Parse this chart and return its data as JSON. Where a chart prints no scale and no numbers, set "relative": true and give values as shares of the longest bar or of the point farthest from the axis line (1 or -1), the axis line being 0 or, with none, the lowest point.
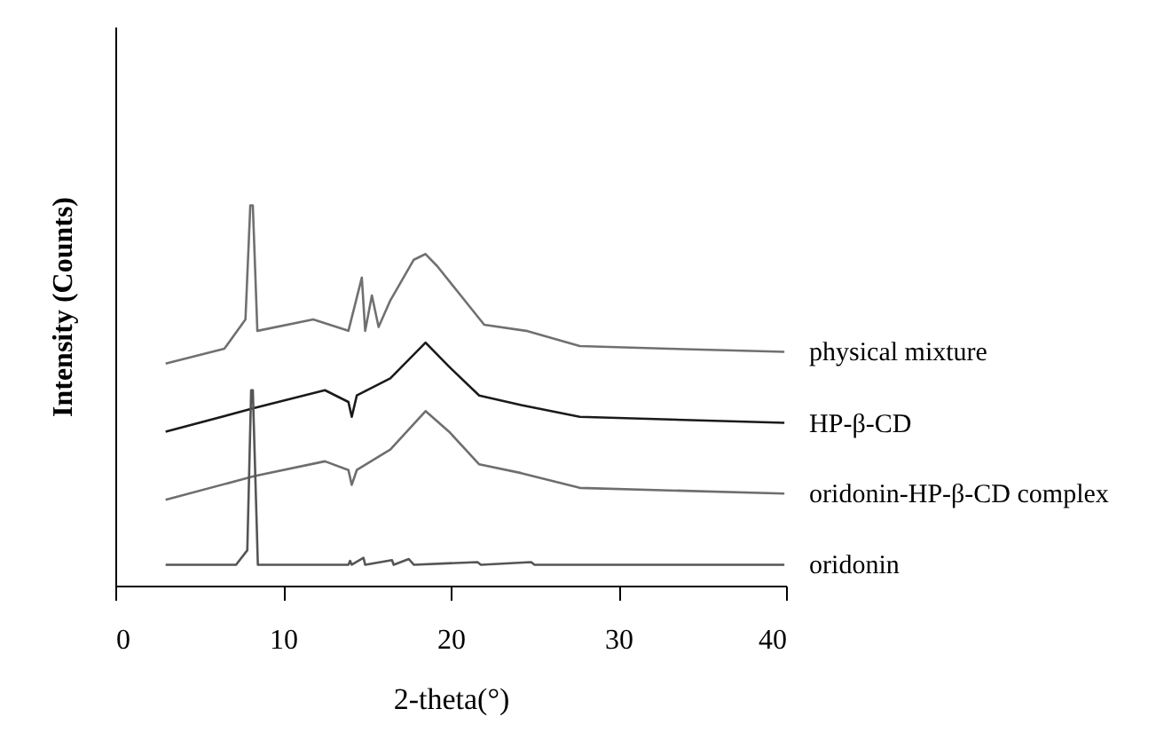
{
  "chart_data": {
    "type": "line",
    "xlabel": "2-theta(°)",
    "ylabel": "Intensity (Counts)",
    "xlim": [
      0,
      40
    ],
    "xticks": [
      0,
      10,
      20,
      30,
      40
    ],
    "relative": true,
    "tick_labels": "x",
    "series": [
      {
        "name": "physical mixture",
        "color": "#707070",
        "x": [
          3.0,
          6.5,
          7.76,
          8.05,
          8.2,
          8.47,
          11.8,
          13.9,
          14.7,
          14.9,
          15.3,
          15.7,
          16.4,
          17.8,
          18.5,
          19.2,
          20.6,
          22.0,
          24.5,
          27.7,
          33.0,
          39.9
        ],
        "values": [
          0.584,
          0.623,
          0.7,
          1.0,
          1.0,
          0.67,
          0.7,
          0.67,
          0.81,
          0.67,
          0.763,
          0.68,
          0.75,
          0.857,
          0.872,
          0.84,
          0.763,
          0.686,
          0.67,
          0.63,
          0.623,
          0.615
        ]
      },
      {
        "name": "HP-β-CD",
        "color": "#1a1a1a",
        "x": [
          3.0,
          8.3,
          12.5,
          13.9,
          14.1,
          14.4,
          16.4,
          18.5,
          19.9,
          21.7,
          24.2,
          27.7,
          39.9
        ],
        "values": [
          0.405,
          0.467,
          0.514,
          0.483,
          0.444,
          0.5,
          0.545,
          0.639,
          0.576,
          0.5,
          0.475,
          0.444,
          0.428
        ]
      },
      {
        "name": "oridonin-HP-β-CD complex",
        "color": "#6e6e6e",
        "x": [
          3.0,
          8.3,
          12.5,
          13.9,
          14.1,
          14.4,
          16.4,
          18.5,
          19.9,
          21.7,
          24.2,
          27.7,
          39.9
        ],
        "values": [
          0.226,
          0.288,
          0.327,
          0.304,
          0.265,
          0.304,
          0.358,
          0.459,
          0.405,
          0.319,
          0.296,
          0.257,
          0.242
        ]
      },
      {
        "name": "oridonin",
        "color": "#555555",
        "x": [
          3.0,
          7.2,
          7.87,
          8.1,
          8.2,
          8.5,
          13.9,
          14.0,
          14.1,
          14.8,
          14.9,
          16.5,
          16.6,
          17.5,
          17.8,
          21.6,
          21.8,
          24.8,
          25.0,
          39.9
        ],
        "values": [
          0.055,
          0.055,
          0.093,
          0.514,
          0.514,
          0.055,
          0.055,
          0.065,
          0.055,
          0.073,
          0.055,
          0.067,
          0.055,
          0.07,
          0.055,
          0.062,
          0.055,
          0.062,
          0.055,
          0.055
        ]
      }
    ]
  }
}
